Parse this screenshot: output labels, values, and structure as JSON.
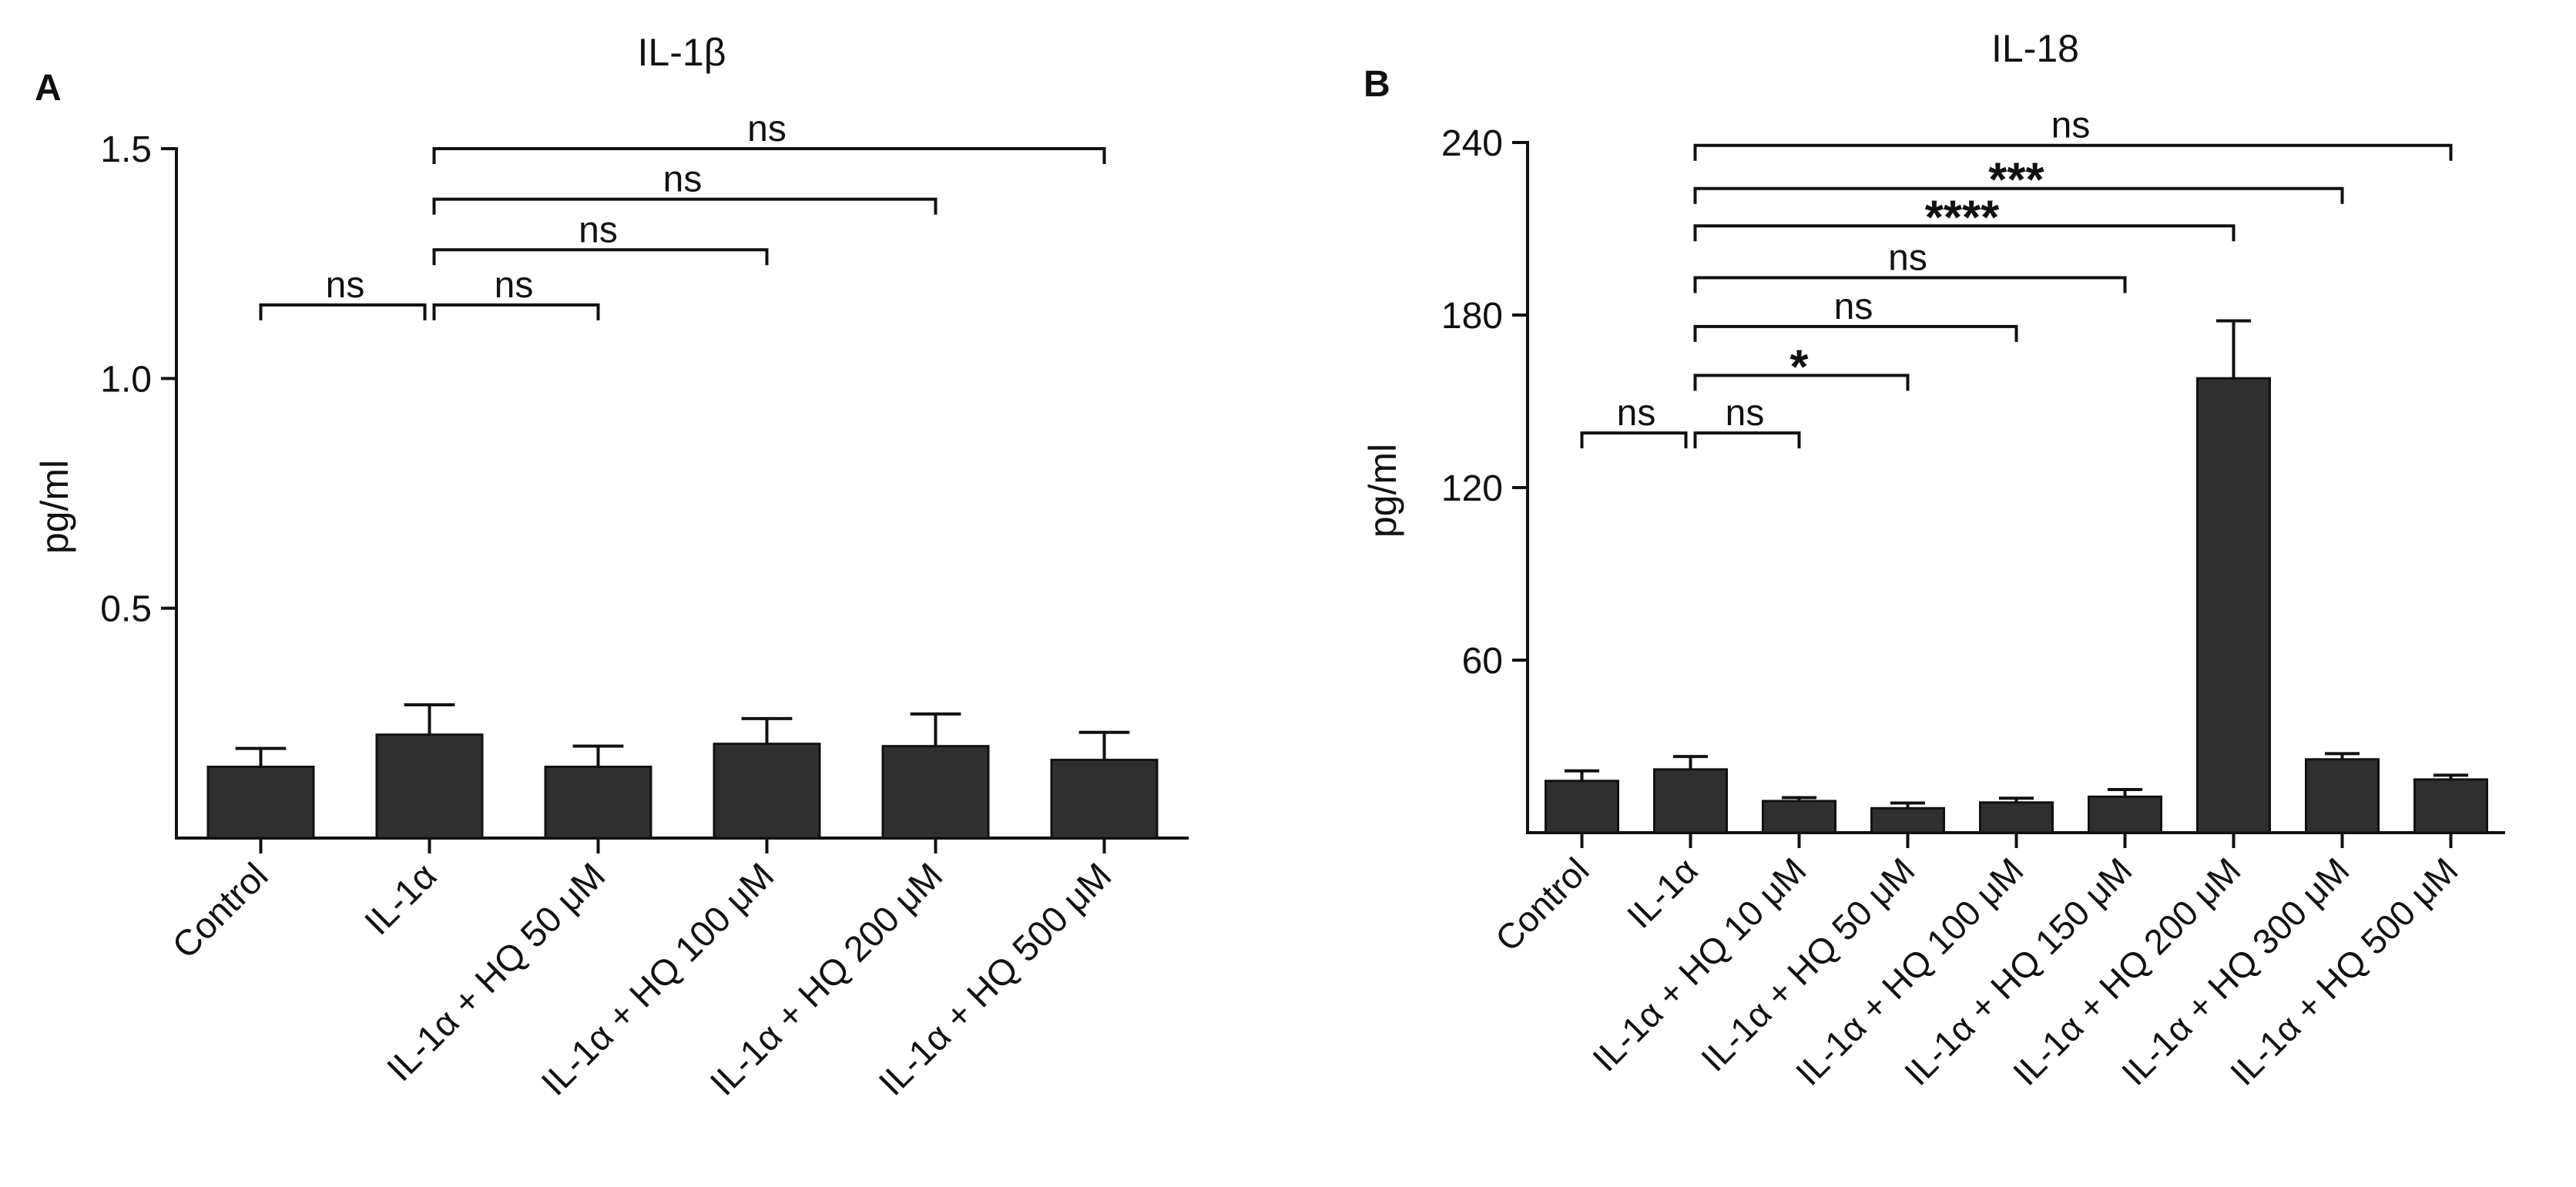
{
  "chart_data": [
    {
      "panel_label": "A",
      "type": "bar",
      "title": "IL-1β",
      "xlabel": "",
      "ylabel": "pg/ml",
      "ylim": [
        0,
        1.5
      ],
      "yticks": [
        0.5,
        1.0,
        1.5
      ],
      "ytick_labels": [
        "0.5",
        "1.0",
        "1.5"
      ],
      "categories": [
        "Control",
        "IL-1α",
        "IL-1α + HQ 50 μM",
        "IL-1α + HQ 100 μM",
        "IL-1α + HQ 200 μM",
        "IL-1α + HQ 500 μM"
      ],
      "values": [
        0.155,
        0.225,
        0.155,
        0.205,
        0.2,
        0.17
      ],
      "errors": [
        0.04,
        0.065,
        0.045,
        0.055,
        0.07,
        0.06
      ],
      "significance": [
        {
          "from": 0,
          "to": 1,
          "y": 1.16,
          "label": "ns"
        },
        {
          "from": 1,
          "to": 2,
          "y": 1.16,
          "label": "ns"
        },
        {
          "from": 1,
          "to": 3,
          "y": 1.28,
          "label": "ns"
        },
        {
          "from": 1,
          "to": 4,
          "y": 1.39,
          "label": "ns"
        },
        {
          "from": 1,
          "to": 5,
          "y": 1.5,
          "label": "ns"
        }
      ]
    },
    {
      "panel_label": "B",
      "type": "bar",
      "title": "IL-18",
      "xlabel": "",
      "ylabel": "pg/ml",
      "ylim": [
        0,
        240
      ],
      "yticks": [
        60,
        120,
        180,
        240
      ],
      "ytick_labels": [
        "60",
        "120",
        "180",
        "240"
      ],
      "categories": [
        "Control",
        "IL-1α",
        "IL-1α + HQ 10 μM",
        "IL-1α + HQ 50 μM",
        "IL-1α + HQ 100 μM",
        "IL-1α + HQ 150 μM",
        "IL-1α + HQ 200 μM",
        "IL-1α + HQ 300 μM",
        "IL-1α + HQ 500 μM"
      ],
      "values": [
        18,
        22,
        11,
        8.5,
        10.5,
        12.5,
        158,
        25.5,
        18.5
      ],
      "errors": [
        3.5,
        4.5,
        1.2,
        1.8,
        1.5,
        2.5,
        20,
        2,
        1.5
      ],
      "significance": [
        {
          "from": 0,
          "to": 1,
          "y": 139,
          "label": "ns"
        },
        {
          "from": 1,
          "to": 2,
          "y": 139,
          "label": "ns"
        },
        {
          "from": 1,
          "to": 3,
          "y": 159,
          "label": "*"
        },
        {
          "from": 1,
          "to": 4,
          "y": 176,
          "label": "ns"
        },
        {
          "from": 1,
          "to": 5,
          "y": 193,
          "label": "ns"
        },
        {
          "from": 1,
          "to": 6,
          "y": 211,
          "label": "****"
        },
        {
          "from": 1,
          "to": 7,
          "y": 224,
          "label": "***"
        },
        {
          "from": 1,
          "to": 8,
          "y": 239,
          "label": "ns"
        }
      ]
    }
  ]
}
